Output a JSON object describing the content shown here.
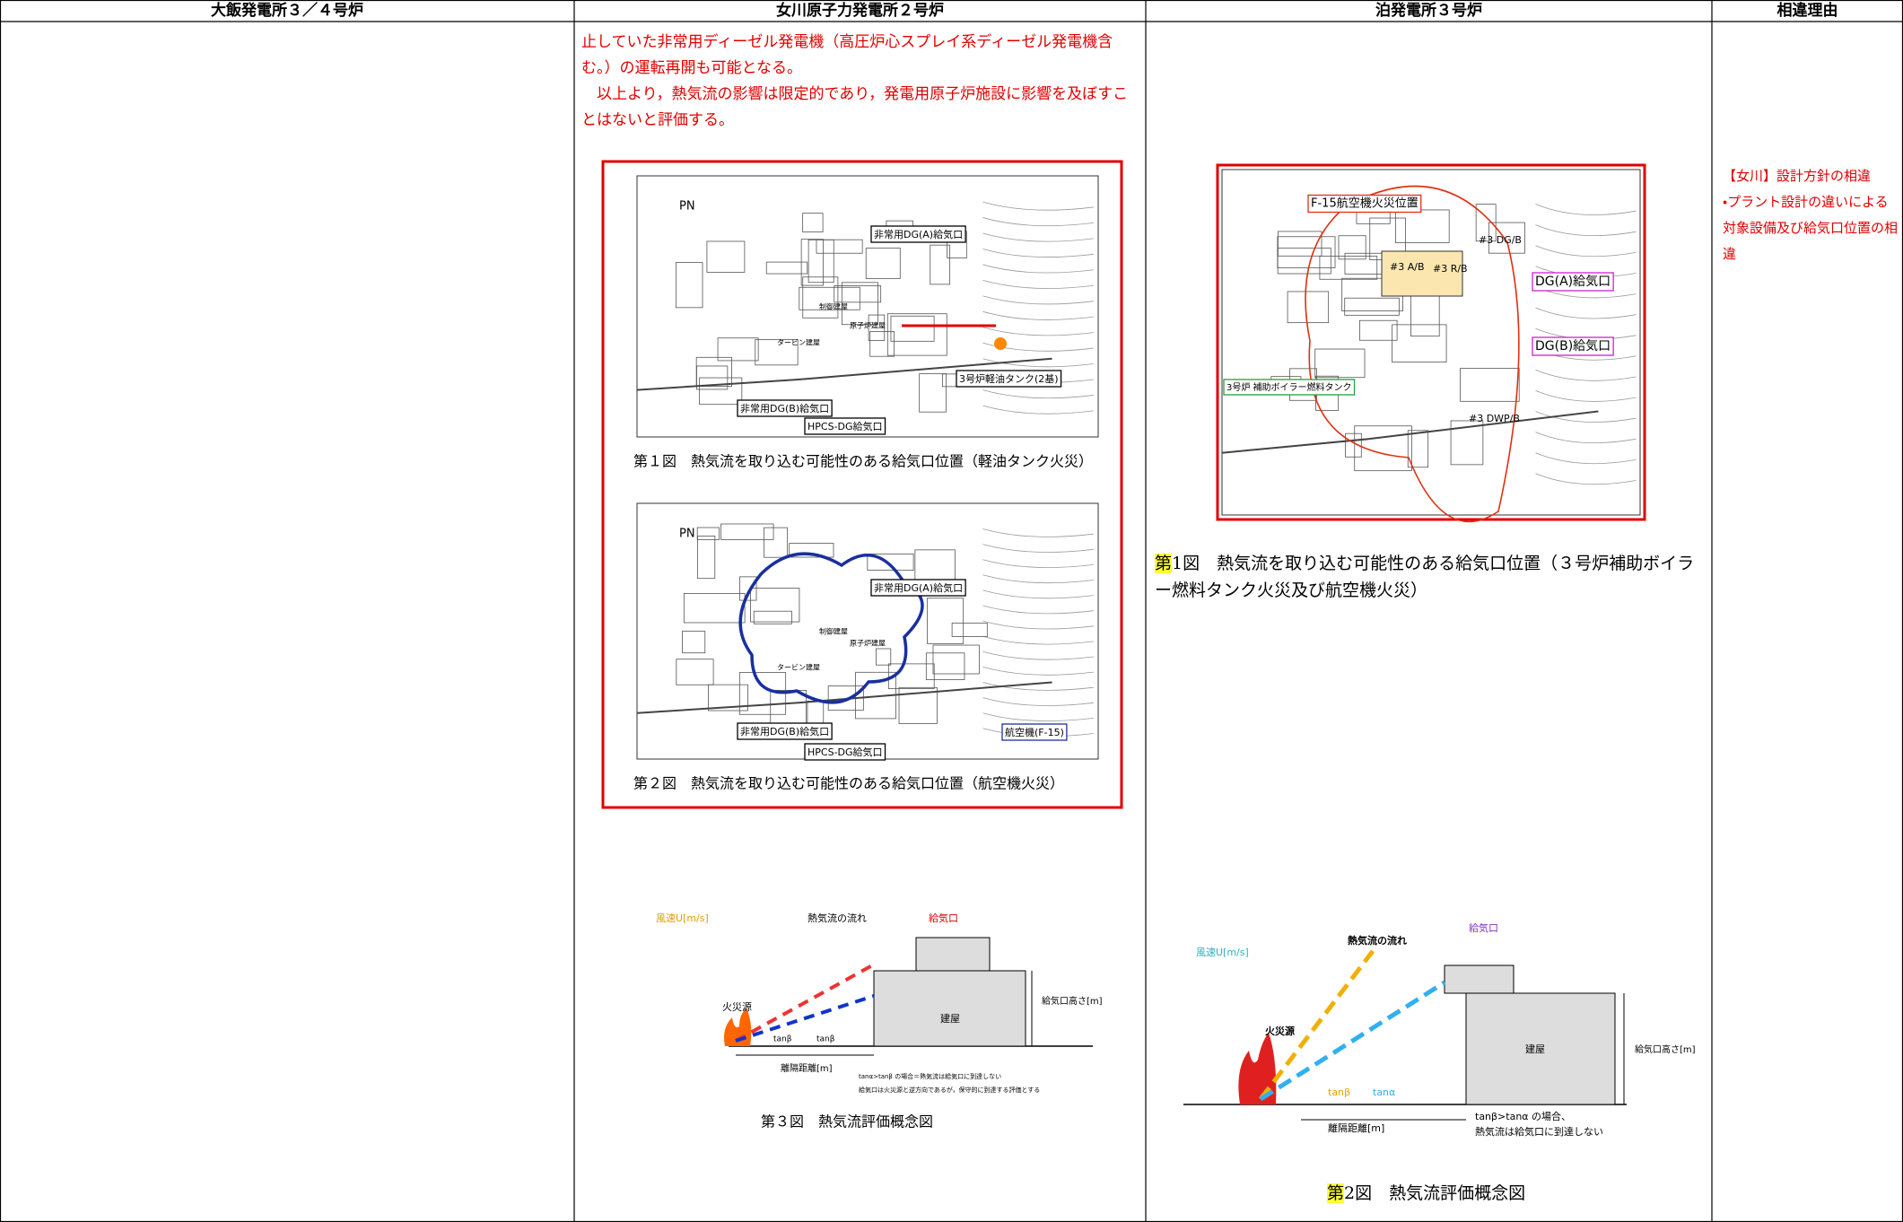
{
  "header": {
    "columns": [
      "大飯発電所３／４号炉",
      "女川原子力発電所２号炉",
      "泊発電所３号炉",
      "相違理由"
    ]
  },
  "onagawa": {
    "text": [
      "止していた非常用ディーゼル発電機（高圧炉心スプレイ系ディーゼル発電機含む。）の運転再開も可能となる。",
      "以上より，熱気流の影響は限定的であり，発電用原子炉施設に影響を及ぼすことはないと評価する。"
    ],
    "fig1": {
      "labels": [
        "PN",
        "非常用DG(A)給気口",
        "制御建屋",
        "原子炉建屋",
        "タービン建屋",
        "3号炉軽油タンク(2基)",
        "非常用DG(B)給気口",
        "HPCS-DG給気口"
      ],
      "caption": "第１図　熱気流を取り込む可能性のある給気口位置（軽油タンク火災）"
    },
    "fig2": {
      "labels": [
        "PN",
        "非常用DG(A)給気口",
        "制御建屋",
        "原子炉建屋",
        "タービン建屋",
        "非常用DG(B)給気口",
        "HPCS-DG給気口",
        "航空機(F-15)"
      ],
      "caption": "第２図　熱気流を取り込む可能性のある給気口位置（航空機火災）"
    },
    "fig3": {
      "labels": [
        "風速U[m/s]",
        "熱気流の流れ",
        "給気口",
        "火災源",
        "建屋",
        "給気口高さ[m]",
        "tanβ",
        "tanβ",
        "離隔距離[m]",
        "tanα>tanβ の場合＝熱気流は給気口に到達しない",
        "給気口は火災源と逆方向であるが，保守的に到達する評価とする"
      ],
      "caption": "第３図　熱気流評価概念図"
    }
  },
  "tomari": {
    "fig1": {
      "labels": [
        "F-15航空機火災位置",
        "#3 DG/B",
        "#3 A/B",
        "#3 R/B",
        "DG(A)給気口",
        "DG(B)給気口",
        "3号炉 補助ボイラー燃料タンク",
        "#3 DWP/B"
      ],
      "caption": {
        "highlight": "第",
        "text": "1図　熱気流を取り込む可能性のある給気口位置（３号炉補助ボイラー燃料タンク火災及び航空機火災）"
      }
    },
    "fig2": {
      "labels": [
        "風速U[m/s]",
        "熱気流の流れ",
        "給気口",
        "火災源",
        "建屋",
        "給気口高さ[m]",
        "tanβ",
        "tanα",
        "離隔距離[m]",
        "tanβ>tanα の場合、",
        "熱気流は給気口に到達しない"
      ],
      "caption": {
        "highlight": "第",
        "text": "2図　熱気流評価概念図"
      }
    }
  },
  "reason": [
    "【女川】設計方針の相違",
    "・プラント設計の違いによる対象設備及び給気口位置の相違"
  ]
}
